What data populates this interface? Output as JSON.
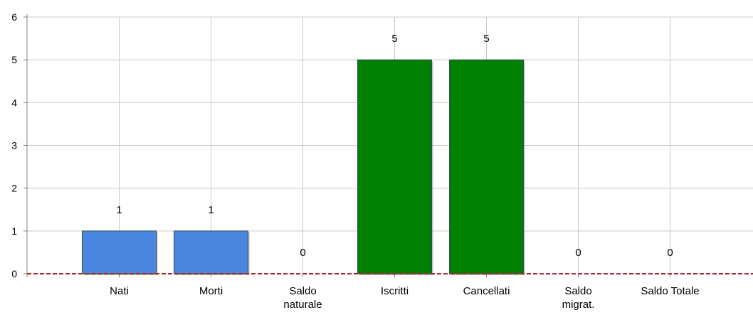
{
  "chart_data": {
    "type": "bar",
    "title": "",
    "xlabel": "",
    "ylabel": "",
    "categories": [
      [
        "Nati"
      ],
      [
        "Morti"
      ],
      [
        "Saldo",
        "naturale"
      ],
      [
        "Iscritti"
      ],
      [
        "Cancellati"
      ],
      [
        "Saldo",
        "migrat."
      ],
      [
        "Saldo Totale"
      ]
    ],
    "values": [
      1,
      1,
      0,
      5,
      5,
      0,
      0
    ],
    "data_labels": [
      "1",
      "1",
      "0",
      "5",
      "5",
      "0",
      "0"
    ],
    "bar_colors": [
      "#4a86e0",
      "#4a86e0",
      "#4a86e0",
      "#008000",
      "#008000",
      "#008000",
      "#008000"
    ],
    "ylim": [
      0,
      6
    ],
    "yticks": [
      0,
      1,
      2,
      3,
      4,
      5,
      6
    ],
    "ytick_labels": [
      "0",
      "1",
      "2",
      "3",
      "4",
      "5",
      "6"
    ],
    "grid": true,
    "grid_color": "#c8c8c8",
    "baseline_color": "#a52a2a",
    "baseline_style": "dashed",
    "legend": "none"
  }
}
